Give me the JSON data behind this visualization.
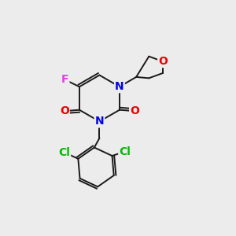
{
  "background_color": "#ececec",
  "bond_color": "#1a1a1a",
  "atom_colors": {
    "F": "#dd44dd",
    "N": "#0000ee",
    "O": "#ee0000",
    "Cl": "#00bb00",
    "C": "#1a1a1a"
  },
  "font_size_atoms": 10,
  "fig_size": [
    3.0,
    3.0
  ],
  "dpi": 100
}
